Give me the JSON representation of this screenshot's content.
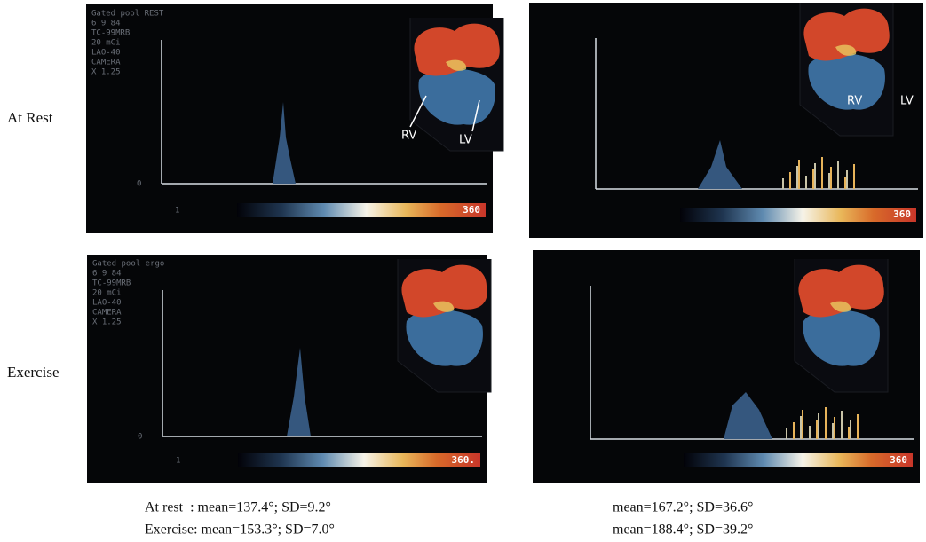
{
  "row_labels": [
    "At Rest",
    "Exercise"
  ],
  "panels": [
    {
      "header": [
        "Gated pool REST",
        "6 9 84",
        "TC-99MRB",
        "20 mCi",
        "LAO-40",
        "CAMERA",
        "X 1.25"
      ],
      "axis_zero": "0",
      "scale_min": "1",
      "scale_max": "360",
      "labels": [
        "RV",
        "LV"
      ]
    },
    {
      "scale_max": "360",
      "labels": [
        "RV",
        "LV"
      ]
    },
    {
      "header": [
        "Gated pool ergo",
        "6 9 84",
        "TC-99MRB",
        "20 mCi",
        "LAO-40",
        "CAMERA",
        "X 1.25"
      ],
      "axis_zero": "0",
      "scale_min": "1",
      "scale_max": "360."
    },
    {
      "scale_max": "360"
    }
  ],
  "captions": [
    "At rest  : mean=137.4°; SD=9.2°",
    "Exercise: mean=153.3°; SD=7.0°",
    "mean=167.2°; SD=36.6°",
    "mean=188.4°; SD=39.2°"
  ]
}
